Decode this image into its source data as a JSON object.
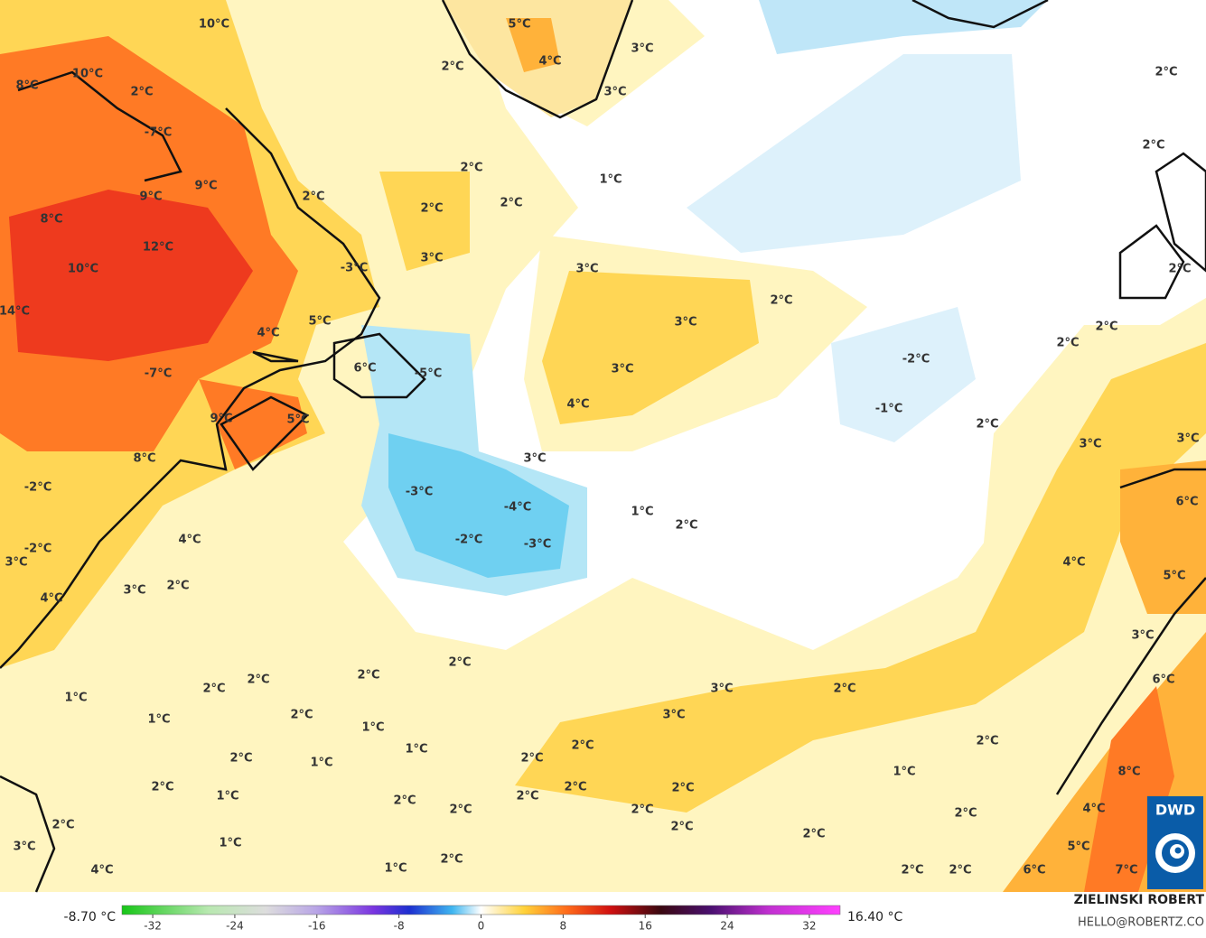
{
  "map": {
    "labels": [
      "10°C",
      "10°C",
      "8°C",
      "2°C",
      "-7°C",
      "9°C",
      "9°C",
      "8°C",
      "12°C",
      "10°C",
      "14°C",
      "2°C",
      "5°C",
      "3°C",
      "4°C",
      "2°C",
      "3°C",
      "2°C",
      "2°C",
      "2°C",
      "1°C",
      "2°C",
      "2°C",
      "3°C",
      "3°C",
      "-3°C",
      "5°C",
      "4°C",
      "3°C",
      "2°C",
      "2°C",
      "2°C",
      "2°C",
      "-7°C",
      "6°C",
      "-5°C",
      "3°C",
      "4°C",
      "-2°C",
      "-1°C",
      "9°C",
      "5°C",
      "2°C",
      "3°C",
      "3°C",
      "8°C",
      "3°C",
      "-2°C",
      "-3°C",
      "-4°C",
      "6°C",
      "1°C",
      "2°C",
      "4°C",
      "-2°C",
      "-3°C",
      "-2°C",
      "3°C",
      "4°C",
      "5°C",
      "3°C",
      "2°C",
      "4°C",
      "3°C",
      "2°C",
      "2°C",
      "2°C",
      "2°C",
      "6°C",
      "3°C",
      "2°C",
      "1°C",
      "1°C",
      "2°C",
      "3°C",
      "1°C",
      "2°C",
      "2°C",
      "1°C",
      "2°C",
      "1°C",
      "2°C",
      "8°C",
      "1°C",
      "2°C",
      "2°C",
      "2°C",
      "1°C",
      "2°C",
      "2°C",
      "2°C",
      "2°C",
      "4°C",
      "2°C",
      "2°C",
      "2°C",
      "2°C",
      "1°C",
      "3°C",
      "5°C",
      "2°C",
      "1°C",
      "4°C",
      "6°C",
      "7°C",
      "2°C",
      "2°C"
    ],
    "colorbar": {
      "range": [
        -35,
        35
      ],
      "ticks": [
        -32,
        -24,
        -16,
        -8,
        0,
        8,
        16,
        24,
        32
      ],
      "min_label": "-8.70 °C",
      "max_label": "16.40 °C"
    },
    "credit": {
      "author": "ZIELINSKI ROBERT",
      "contact": "HELLO@ROBERTZ.CO",
      "logo": "DWD"
    }
  }
}
